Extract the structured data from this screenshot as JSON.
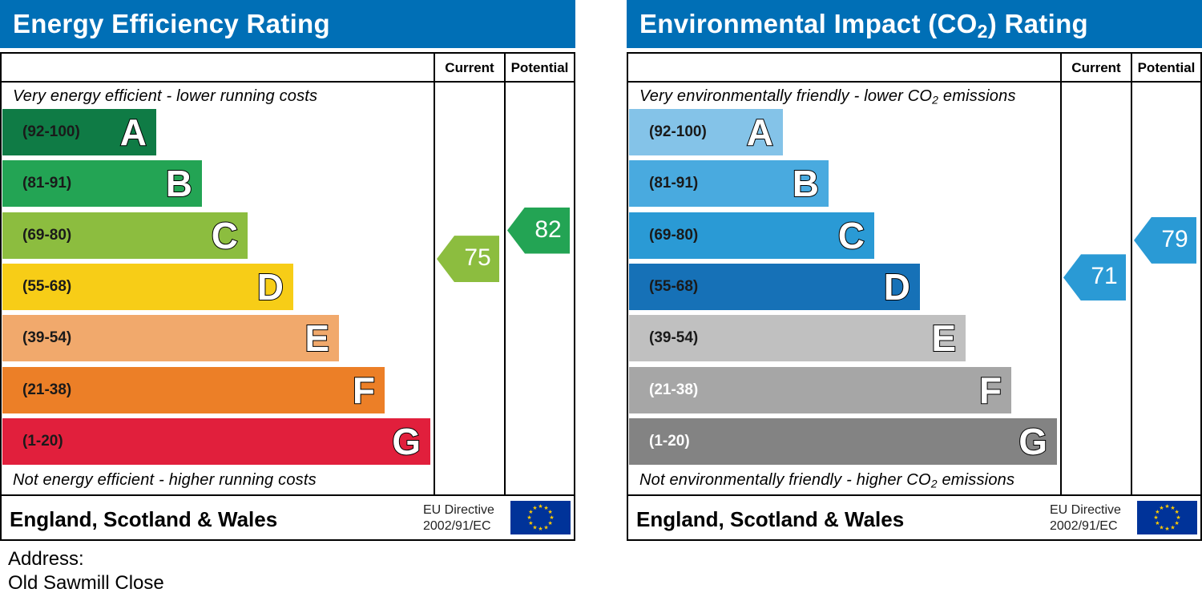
{
  "energy": {
    "title": "Energy Efficiency Rating",
    "col_current": "Current",
    "col_potential": "Potential",
    "caption_top": "Very energy efficient - lower running costs",
    "caption_bottom": "Not energy efficient - higher running costs",
    "footer_region": "England, Scotland & Wales",
    "directive_line1": "EU Directive",
    "directive_line2": "2002/91/EC",
    "current_value": "75",
    "potential_value": "82",
    "current_color": "#8cbd3f",
    "potential_color": "#23a454"
  },
  "environmental": {
    "title_pre": "Environmental Impact (CO",
    "title_sub": "2",
    "title_post": ") Rating",
    "col_current": "Current",
    "col_potential": "Potential",
    "caption_top_pre": "Very environmentally friendly - lower CO",
    "caption_top_sub": "2",
    "caption_top_post": " emissions",
    "caption_bottom_pre": "Not environmentally friendly - higher CO",
    "caption_bottom_sub": "2",
    "caption_bottom_post": " emissions",
    "footer_region": "England, Scotland & Wales",
    "directive_line1": "EU Directive",
    "directive_line2": "2002/91/EC",
    "current_value": "71",
    "potential_value": "79",
    "current_color": "#2a9ad5",
    "potential_color": "#2a9ad5"
  },
  "address": {
    "label": "Address:",
    "value": "Old Sawmill Close"
  },
  "chart_data": [
    {
      "type": "bar",
      "title": "Energy Efficiency Rating",
      "categories": [
        "A",
        "B",
        "C",
        "D",
        "E",
        "F",
        "G"
      ],
      "ranges": [
        "(92-100)",
        "(81-91)",
        "(69-80)",
        "(55-68)",
        "(39-54)",
        "(21-38)",
        "(1-20)"
      ],
      "colors": [
        "#0f7b45",
        "#23a454",
        "#8cbd3f",
        "#f7cd17",
        "#f1a96c",
        "#ec7f27",
        "#e11f3c"
      ],
      "current": 75,
      "potential": 82
    },
    {
      "type": "bar",
      "title": "Environmental Impact (CO2) Rating",
      "categories": [
        "A",
        "B",
        "C",
        "D",
        "E",
        "F",
        "G"
      ],
      "ranges": [
        "(92-100)",
        "(81-91)",
        "(69-80)",
        "(55-68)",
        "(39-54)",
        "(21-38)",
        "(1-20)"
      ],
      "colors": [
        "#84c3e8",
        "#49aadf",
        "#2a9ad5",
        "#1671b7",
        "#c0c0c0",
        "#a6a6a6",
        "#838383"
      ],
      "current": 71,
      "potential": 79
    }
  ]
}
